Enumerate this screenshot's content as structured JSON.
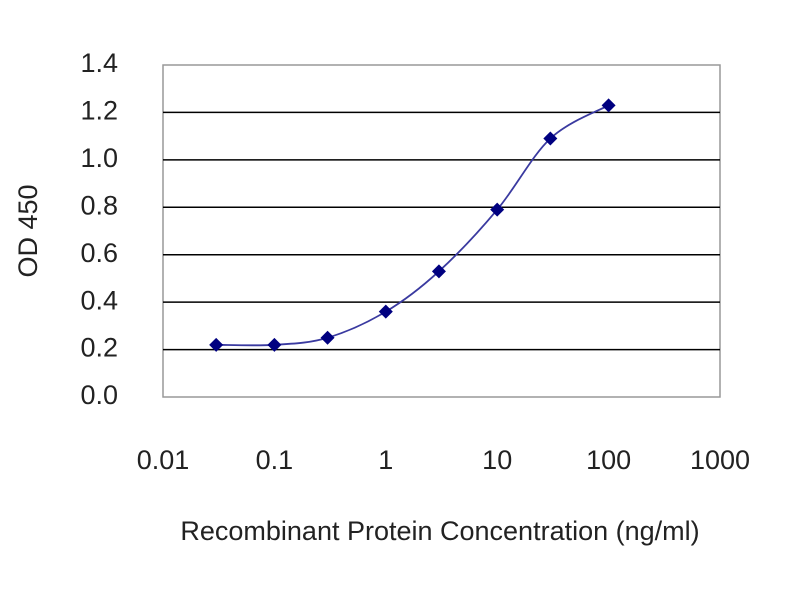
{
  "chart_data": {
    "type": "line",
    "x_label": "Recombinant Protein Concentration (ng/ml)",
    "y_label": "OD 450",
    "x_scale": "log",
    "x": [
      0.03,
      0.1,
      0.3,
      1,
      3,
      10,
      30,
      100
    ],
    "series": [
      {
        "color": "#000080",
        "values": [
          0.22,
          0.22,
          0.25,
          0.36,
          0.53,
          0.79,
          1.09,
          1.23
        ]
      }
    ],
    "xlim": [
      0.01,
      1000
    ],
    "xticks": [
      0.01,
      0.1,
      1,
      10,
      100,
      1000
    ],
    "ylim": [
      0,
      1.4
    ],
    "yticks": [
      {
        "value": 0,
        "label": "0.0"
      },
      {
        "value": 0.2,
        "label": "0.2"
      },
      {
        "value": 0.4,
        "label": "0.4"
      },
      {
        "value": 0.6,
        "label": "0.6"
      },
      {
        "value": 0.8,
        "label": "0.8"
      },
      {
        "value": 1.0,
        "label": "1.0"
      },
      {
        "value": 1.2,
        "label": "1.2"
      },
      {
        "value": 1.4,
        "label": "1.4"
      }
    ],
    "grid": true
  }
}
